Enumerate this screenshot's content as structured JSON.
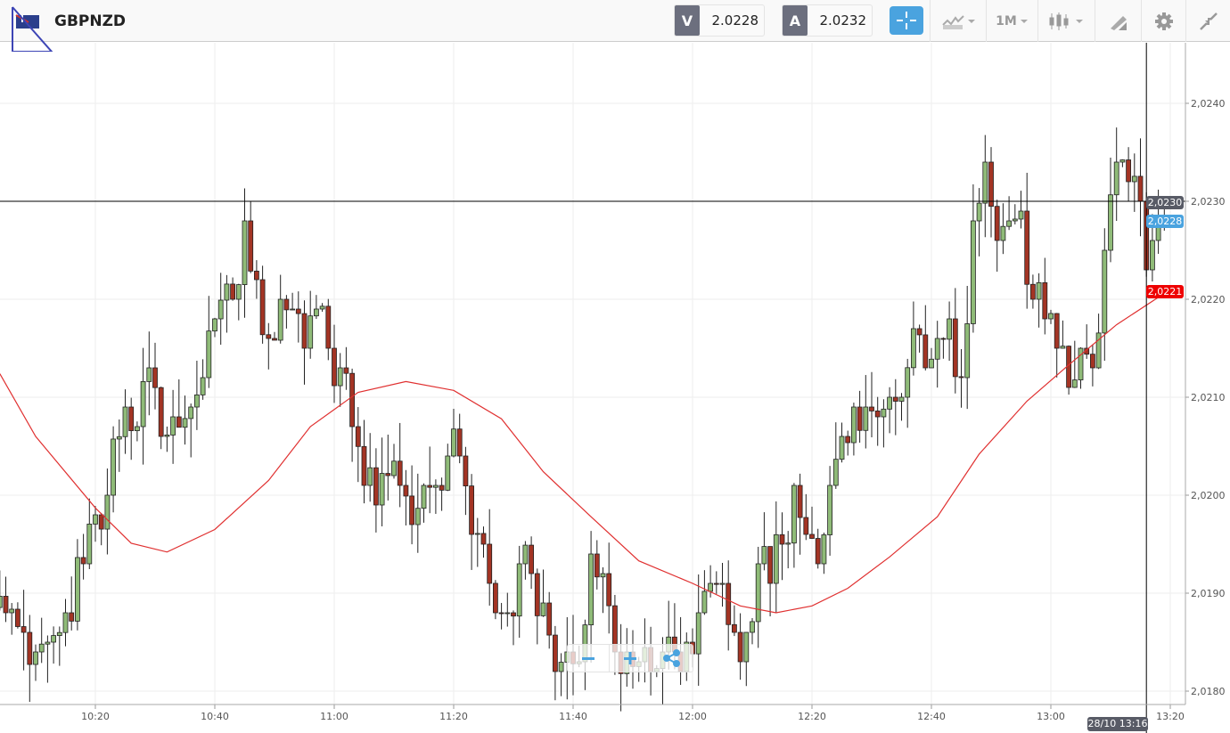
{
  "header": {
    "symbol": "GBPNZD",
    "flag_icon": "gb-nz-flag-icon",
    "sell": {
      "label": "V",
      "value": "2.0228"
    },
    "buy": {
      "label": "A",
      "value": "2.0232"
    },
    "tools": {
      "crosshair": "crosshair-icon",
      "indicators": "indicators-icon",
      "timeframe": "1M",
      "chart_type": "candlestick-icon",
      "draw": "draw-icon",
      "settings": "gear-icon",
      "collapse": "collapse-icon"
    }
  },
  "colors": {
    "up": "#8fbb78",
    "down": "#a33424",
    "ma": "#e03030",
    "accent": "#4aa3df",
    "sell_badge": "#4aa3df",
    "ma_badge": "#ee0000",
    "crosshair_badge": "#585b66"
  },
  "chart_data": {
    "type": "candlestick",
    "timeframe": "1M",
    "ylim": [
      2.0178,
      2.0246
    ],
    "yticks": [
      "2,0240",
      "2,0230",
      "2,0220",
      "2,0210",
      "2,0200",
      "2,0190",
      "2,0180"
    ],
    "xticks": [
      "10:20",
      "10:40",
      "11:00",
      "11:20",
      "11:40",
      "12:00",
      "12:20",
      "12:40",
      "13:00",
      "13:20"
    ],
    "closes": [
      [
        "10:00",
        2.0188
      ],
      [
        "10:05",
        2.0188
      ],
      [
        "10:08",
        2.0186
      ],
      [
        "10:10",
        2.0184
      ],
      [
        "10:12",
        2.0185
      ],
      [
        "10:15",
        2.0188
      ],
      [
        "10:18",
        2.0193
      ],
      [
        "10:20",
        2.0198
      ],
      [
        "10:22",
        2.02
      ],
      [
        "10:25",
        2.0209
      ],
      [
        "10:27",
        2.0207
      ],
      [
        "10:29",
        2.0213
      ],
      [
        "10:31",
        2.0206
      ],
      [
        "10:33",
        2.0208
      ],
      [
        "10:36",
        2.0209
      ],
      [
        "10:38",
        2.0212
      ],
      [
        "10:40",
        2.0218
      ],
      [
        "10:43",
        2.022
      ],
      [
        "10:45",
        2.0228
      ],
      [
        "10:47",
        2.0222
      ],
      [
        "10:49",
        2.0216
      ],
      [
        "10:51",
        2.022
      ],
      [
        "10:53",
        2.0219
      ],
      [
        "10:55",
        2.0215
      ],
      [
        "10:57",
        2.0219
      ],
      [
        "10:59",
        2.0215
      ],
      [
        "11:01",
        2.0213
      ],
      [
        "11:03",
        2.0207
      ],
      [
        "11:05",
        2.0201
      ],
      [
        "11:07",
        2.0199
      ],
      [
        "11:09",
        2.0202
      ],
      [
        "11:11",
        2.0201
      ],
      [
        "11:13",
        2.0197
      ],
      [
        "11:15",
        2.0201
      ],
      [
        "11:17",
        2.0201
      ],
      [
        "11:19",
        2.0204
      ],
      [
        "11:21",
        2.0204
      ],
      [
        "11:23",
        2.0196
      ],
      [
        "11:25",
        2.0195
      ],
      [
        "11:27",
        2.0188
      ],
      [
        "11:29",
        2.0188
      ],
      [
        "11:31",
        2.0193
      ],
      [
        "11:33",
        2.0192
      ],
      [
        "11:35",
        2.0189
      ],
      [
        "11:37",
        2.0182
      ],
      [
        "11:39",
        2.0184
      ],
      [
        "11:41",
        2.0183
      ],
      [
        "11:43",
        2.0194
      ],
      [
        "11:45",
        2.0192
      ],
      [
        "11:47",
        2.0184
      ],
      [
        "11:49",
        2.0184
      ],
      [
        "11:51",
        2.0183
      ],
      [
        "11:53",
        2.0182
      ],
      [
        "11:55",
        2.0184
      ],
      [
        "11:57",
        2.0184
      ],
      [
        "11:59",
        2.0185
      ],
      [
        "12:01",
        2.0188
      ],
      [
        "12:03",
        2.0191
      ],
      [
        "12:05",
        2.0191
      ],
      [
        "12:07",
        2.0186
      ],
      [
        "12:09",
        2.0186
      ],
      [
        "12:11",
        2.0193
      ],
      [
        "12:13",
        2.0191
      ],
      [
        "12:15",
        2.0195
      ],
      [
        "12:17",
        2.0201
      ],
      [
        "12:19",
        2.0196
      ],
      [
        "12:21",
        2.0193
      ],
      [
        "12:23",
        2.0201
      ],
      [
        "12:25",
        2.0206
      ],
      [
        "12:27",
        2.0209
      ],
      [
        "12:29",
        2.0209
      ],
      [
        "12:31",
        2.0208
      ],
      [
        "12:33",
        2.021
      ],
      [
        "12:35",
        2.021
      ],
      [
        "12:37",
        2.0217
      ],
      [
        "12:39",
        2.0213
      ],
      [
        "12:41",
        2.0216
      ],
      [
        "12:43",
        2.0218
      ],
      [
        "12:45",
        2.0212
      ],
      [
        "12:47",
        2.0228
      ],
      [
        "12:49",
        2.0234
      ],
      [
        "12:51",
        2.0226
      ],
      [
        "12:53",
        2.0228
      ],
      [
        "12:55",
        2.0229
      ],
      [
        "12:57",
        2.022
      ],
      [
        "12:59",
        2.0218
      ],
      [
        "13:01",
        2.0215
      ],
      [
        "13:03",
        2.0211
      ],
      [
        "13:05",
        2.0215
      ],
      [
        "13:07",
        2.0213
      ],
      [
        "13:09",
        2.0225
      ],
      [
        "13:11",
        2.0234
      ],
      [
        "13:13",
        2.0232
      ],
      [
        "13:15",
        2.023
      ],
      [
        "13:16",
        2.0223
      ],
      [
        "13:17",
        2.0226
      ],
      [
        "13:18",
        2.0228
      ],
      [
        "13:19",
        2.0228
      ]
    ],
    "moving_average": [
      [
        "10:04",
        2.02124
      ],
      [
        "10:10",
        2.0206
      ],
      [
        "10:20",
        2.01987
      ],
      [
        "10:26",
        2.01951
      ],
      [
        "10:32",
        2.01942
      ],
      [
        "10:40",
        2.01965
      ],
      [
        "10:49",
        2.02015
      ],
      [
        "10:56",
        2.0207
      ],
      [
        "11:04",
        2.02105
      ],
      [
        "11:12",
        2.02116
      ],
      [
        "11:20",
        2.02107
      ],
      [
        "11:28",
        2.02078
      ],
      [
        "11:35",
        2.02024
      ],
      [
        "11:43",
        2.01978
      ],
      [
        "11:51",
        2.01933
      ],
      [
        "12:00",
        2.0191
      ],
      [
        "12:08",
        2.01887
      ],
      [
        "12:14",
        2.0188
      ],
      [
        "12:20",
        2.01887
      ],
      [
        "12:26",
        2.01905
      ],
      [
        "12:33",
        2.01937
      ],
      [
        "12:41",
        2.01978
      ],
      [
        "12:48",
        2.02042
      ],
      [
        "12:56",
        2.02096
      ],
      [
        "13:03",
        2.02133
      ],
      [
        "13:11",
        2.02174
      ],
      [
        "13:20",
        2.0221
      ]
    ],
    "crosshair": {
      "price": "2,0230",
      "time": "28/10 13:16"
    },
    "badges": {
      "sell": "2,0228",
      "ma": "2,0221"
    }
  }
}
